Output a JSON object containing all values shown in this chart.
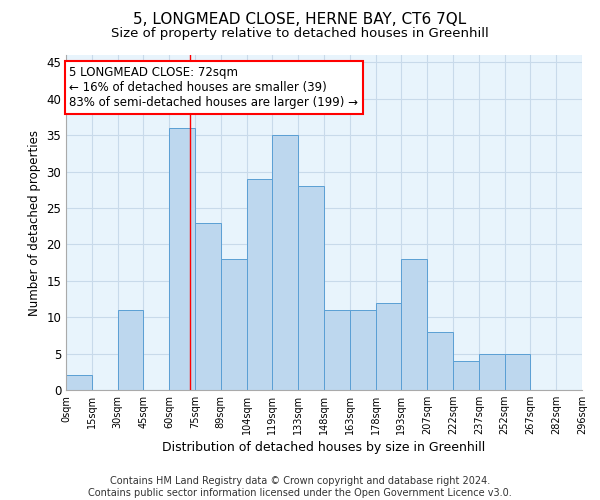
{
  "title": "5, LONGMEAD CLOSE, HERNE BAY, CT6 7QL",
  "subtitle": "Size of property relative to detached houses in Greenhill",
  "xlabel": "Distribution of detached houses by size in Greenhill",
  "ylabel": "Number of detached properties",
  "bins": [
    0,
    15,
    30,
    45,
    60,
    75,
    90,
    105,
    120,
    135,
    150,
    165,
    180,
    195,
    210,
    225,
    240,
    255,
    270,
    285,
    300
  ],
  "bar_heights": [
    2,
    0,
    11,
    0,
    36,
    23,
    18,
    29,
    35,
    28,
    11,
    11,
    12,
    18,
    8,
    4,
    5,
    5,
    0,
    0
  ],
  "bar_color": "#bdd7ee",
  "bar_edge_color": "#5a9fd4",
  "property_line_x": 72,
  "annotation_text": "5 LONGMEAD CLOSE: 72sqm\n← 16% of detached houses are smaller (39)\n83% of semi-detached houses are larger (199) →",
  "annotation_box_color": "white",
  "annotation_box_edge_color": "red",
  "vline_color": "red",
  "ylim": [
    0,
    46
  ],
  "yticks": [
    0,
    5,
    10,
    15,
    20,
    25,
    30,
    35,
    40,
    45
  ],
  "x_tick_labels": [
    "0sqm",
    "15sqm",
    "30sqm",
    "45sqm",
    "60sqm",
    "75sqm",
    "89sqm",
    "104sqm",
    "119sqm",
    "133sqm",
    "148sqm",
    "163sqm",
    "178sqm",
    "193sqm",
    "207sqm",
    "222sqm",
    "237sqm",
    "252sqm",
    "267sqm",
    "282sqm",
    "296sqm"
  ],
  "x_tick_positions": [
    0,
    15,
    30,
    45,
    60,
    75,
    90,
    105,
    120,
    135,
    150,
    165,
    180,
    195,
    210,
    225,
    240,
    255,
    270,
    285,
    300
  ],
  "grid_color": "#c8daea",
  "background_color": "#e8f4fc",
  "footer_text": "Contains HM Land Registry data © Crown copyright and database right 2024.\nContains public sector information licensed under the Open Government Licence v3.0.",
  "title_fontsize": 11,
  "subtitle_fontsize": 9.5,
  "xlabel_fontsize": 9,
  "ylabel_fontsize": 8.5,
  "annotation_fontsize": 8.5,
  "footer_fontsize": 7
}
